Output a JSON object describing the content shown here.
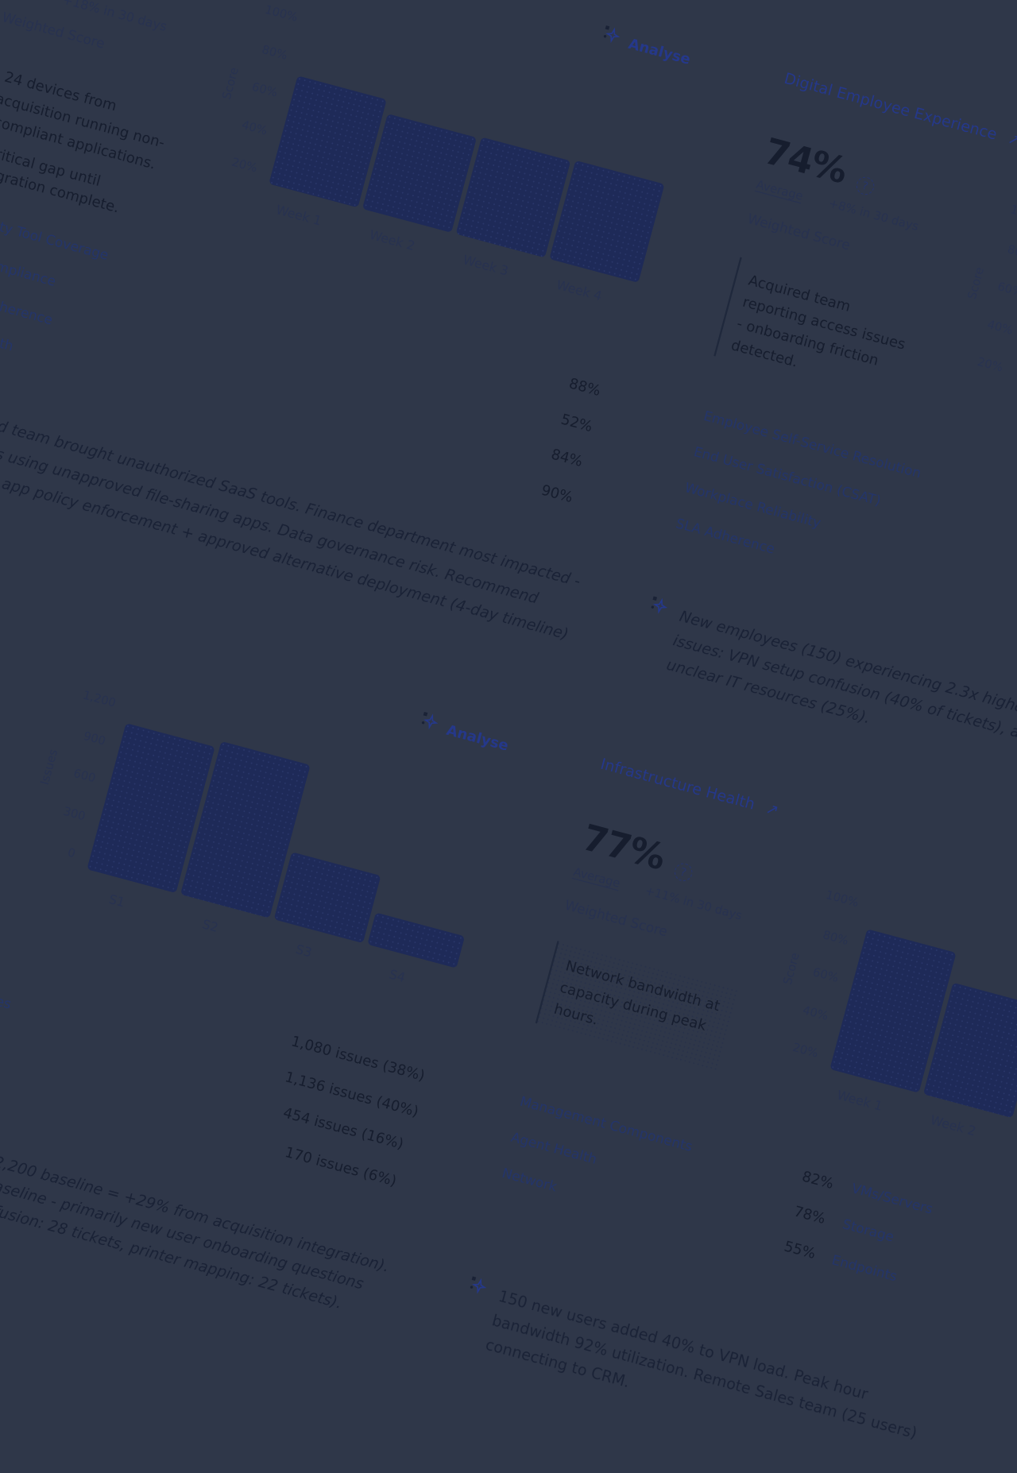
{
  "security_card": {
    "trend": "+18% in 30 days",
    "score_label": "Weighted Score",
    "insight_lines": [
      "24 devices from",
      "acquisition running non-",
      "compliant applications.",
      "ritical gap until",
      "gration complete."
    ],
    "metrics": [
      "ity Tool Coverage",
      "mpliance",
      "lherence",
      "lth"
    ],
    "analysis_lines": [
      "d team brought unauthorized SaaS tools. Finance department most impacted -",
      "s using unapproved file-sharing apps. Data governance risk. Recommend",
      "app policy enforcement + approved alternative deployment (4-day timeline)"
    ]
  },
  "analyse_label": "Analyse",
  "dex_card": {
    "title": "Digital Employee Experience",
    "link_icon": "arrow-up-right-icon",
    "score": "74%",
    "help": "?",
    "average_label": "Average",
    "trend": "+8% in 30 days",
    "score_label": "Weighted Score",
    "insight": "Acquired team reporting access issues - onboarding friction detected.",
    "metric_values": [
      "88%",
      "52%",
      "84%",
      "90%"
    ],
    "metrics": [
      "Employee Self-Service Resolution",
      "End User Satisfaction (CSAT)",
      "Workplace Reliability",
      "SLA Adherence"
    ],
    "analysis": "New employees (150) experiencing 2.3x higher issues: VPN setup confusion (40% of tickets), a unclear IT resources (25%)."
  },
  "issues_card": {
    "fragment": "es",
    "issue_counts": [
      "1,080 issues (38%)",
      "1,136 issues (40%)",
      "454 issues (16%)",
      "170 issues (6%)"
    ],
    "analysis_lines": [
      "2,200 baseline = +29% from acquisition integration).",
      "aseline - primarily new user onboarding questions",
      "fusion: 28 tickets, printer mapping: 22 tickets)."
    ]
  },
  "infra_card": {
    "title": "Infrastructure Health",
    "link_icon": "arrow-up-right-icon",
    "score": "77%",
    "help": "?",
    "average_label": "Average",
    "trend": "+11% in 30 days",
    "score_label": "Weighted Score",
    "insight": "Network bandwidth at capacity during peak hours.",
    "components": [
      "Management Components",
      "Agent Health",
      "Network"
    ],
    "resources": [
      {
        "value": "82%",
        "label": "VMs/Servers"
      },
      {
        "value": "78%",
        "label": "Storage"
      },
      {
        "value": "55%",
        "label": "Endpoints"
      }
    ],
    "analysis": "150 new users added 40% to VPN load. Peak hour bandwidth 92% utilization. Remote Sales team (25 users) connecting to CRM."
  },
  "colors": {
    "background": "#2f3749",
    "bar": "#1e2a58",
    "link": "#25388a",
    "text": "#161d2e"
  },
  "chart_data": [
    {
      "type": "bar",
      "ylabel": "Score",
      "yticks": [
        "100%",
        "80%",
        "60%",
        "40%",
        "20%"
      ],
      "ylim": [
        0,
        100
      ],
      "categories": [
        "Week 1",
        "Week 2",
        "Week 3",
        "Week 4"
      ],
      "values": [
        72,
        65,
        66,
        67
      ]
    },
    {
      "type": "bar",
      "ylabel": "Score",
      "yticks": [
        "100%",
        "80%",
        "60%",
        "40%",
        "20%"
      ],
      "ylim": [
        0,
        100
      ],
      "categories": [],
      "values": []
    },
    {
      "type": "bar",
      "ylabel": "Issues",
      "yticks": [
        "1,200",
        "900",
        "600",
        "300",
        "0"
      ],
      "ylim": [
        0,
        1200
      ],
      "categories": [
        "S1",
        "S2",
        "S3",
        "S4"
      ],
      "values": [
        1080,
        1136,
        454,
        170
      ]
    },
    {
      "type": "bar",
      "ylabel": "Score",
      "yticks": [
        "100%",
        "80%",
        "60%",
        "40%",
        "20%"
      ],
      "ylim": [
        0,
        100
      ],
      "categories": [
        "Week 1",
        "Week 2"
      ],
      "values": [
        89,
        74
      ]
    }
  ]
}
